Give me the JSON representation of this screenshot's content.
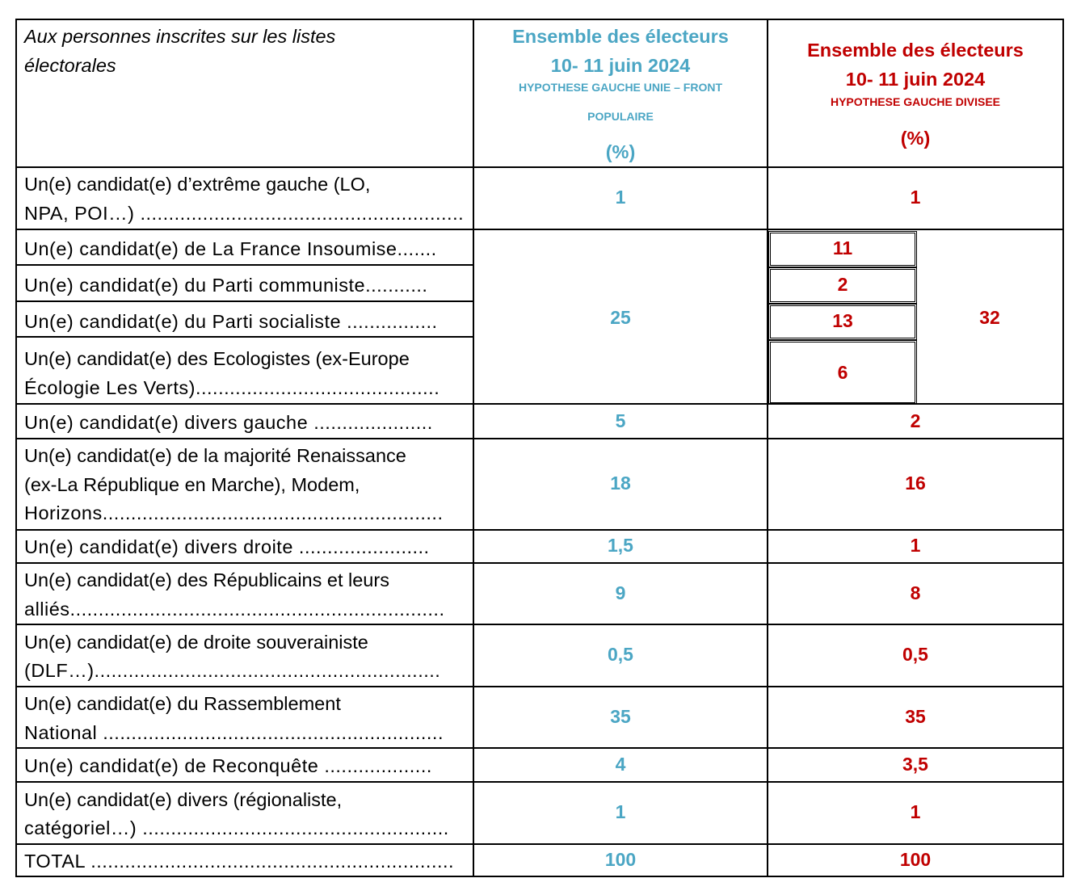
{
  "header": {
    "first_col": "Aux personnes inscrites sur les listes électorales",
    "col1_title": "Ensemble des électeurs",
    "col1_date": "10- 11 juin 2024",
    "col1_hyp_line1": "HYPOTHESE GAUCHE UNIE – FRONT",
    "col1_hyp_line2": "POPULAIRE",
    "col1_unit": "(%)",
    "col2_title": "Ensemble des électeurs",
    "col2_date": "10- 11 juin 2024",
    "col2_hyp": "HYPOTHESE GAUCHE DIVISEE",
    "col2_unit": "(%)"
  },
  "rows": {
    "extreme_gauche": {
      "l1": "Un(e) candidat(e) d’extrême gauche (LO,",
      "l2": "NPA, POI…) .........................................................",
      "v1": "1",
      "v2": "1"
    },
    "lfi": {
      "l1": "Un(e) candidat(e) de La France Insoumise.......",
      "v2": "11"
    },
    "pc": {
      "l1": "Un(e) candidat(e) du Parti communiste...........",
      "v2": "2"
    },
    "ps": {
      "l1": "Un(e) candidat(e) du Parti socialiste ................",
      "v2": "13"
    },
    "eco": {
      "l1": "Un(e) candidat(e) des Ecologistes (ex-Europe",
      "l2": "Écologie Les Verts)...........................................",
      "v2": "6"
    },
    "union_total": {
      "v1": "25",
      "v2": "32"
    },
    "divers_gauche": {
      "l1": "Un(e) candidat(e) divers gauche .....................",
      "v1": "5",
      "v2": "2"
    },
    "majorite": {
      "l1": "Un(e) candidat(e) de la majorité Renaissance",
      "l2": "(ex-La République en Marche), Modem,",
      "l3": "Horizons............................................................",
      "v1": "18",
      "v2": "16"
    },
    "divers_droite": {
      "l1": "Un(e) candidat(e) divers droite .......................",
      "v1": "1,5",
      "v2": "1"
    },
    "lr": {
      "l1": "Un(e) candidat(e) des Républicains et leurs",
      "l2": "alliés..................................................................",
      "v1": "9",
      "v2": "8"
    },
    "souverainiste": {
      "l1": "Un(e) candidat(e) de droite souverainiste",
      "l2": "(DLF…).............................................................",
      "v1": "0,5",
      "v2": "0,5"
    },
    "rn": {
      "l1": "Un(e) candidat(e) du Rassemblement",
      "l2": "National ............................................................",
      "v1": "35",
      "v2": "35"
    },
    "reconquete": {
      "l1": "Un(e) candidat(e) de Reconquête ...................",
      "v1": "4",
      "v2": "3,5"
    },
    "divers": {
      "l1": "Un(e) candidat(e) divers (régionaliste,",
      "l2": "catégoriel…) ......................................................",
      "v1": "1",
      "v2": "1"
    },
    "total": {
      "l1": "TOTAL ................................................................",
      "v1": "100",
      "v2": "100"
    }
  },
  "colors": {
    "blue": "#4BA6C4",
    "red": "#C00000"
  }
}
